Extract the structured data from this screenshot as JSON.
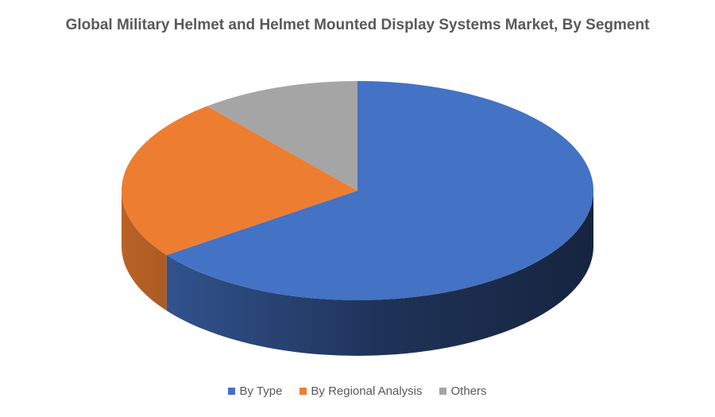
{
  "chart_data": {
    "type": "pie",
    "style": "3d",
    "title": "Global Military Helmet and Helmet Mounted Display Systems Market, By Segment",
    "legend_position": "bottom",
    "slices": [
      {
        "label": "By Type",
        "value": 65,
        "color": "#4472C4"
      },
      {
        "label": "By Regional Analysis",
        "value": 24,
        "color": "#ED7D31"
      },
      {
        "label": "Others",
        "value": 11,
        "color": "#A5A5A5"
      }
    ]
  }
}
